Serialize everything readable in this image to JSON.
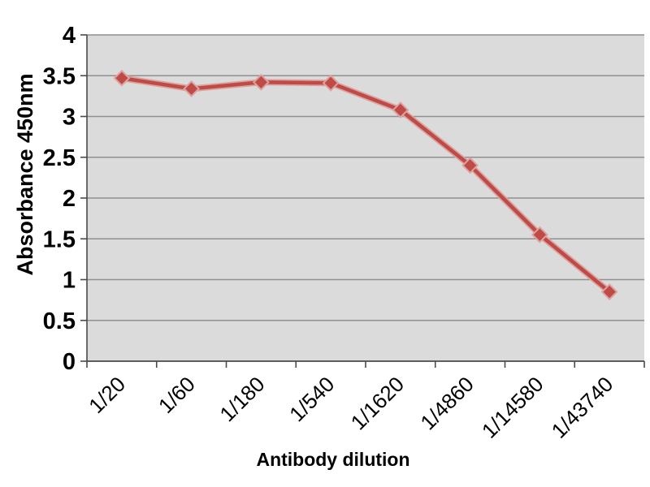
{
  "chart_data": {
    "type": "line",
    "title": "",
    "xlabel": "Antibody dilution",
    "ylabel": "Absorbance 450nm",
    "categories": [
      "1/20",
      "1/60",
      "1/180",
      "1/540",
      "1/1620",
      "1/4860",
      "1/14580",
      "1/43740"
    ],
    "values": [
      3.47,
      3.34,
      3.42,
      3.41,
      3.08,
      2.4,
      1.55,
      0.85
    ],
    "ylim": [
      0,
      4
    ],
    "ytick_step": 0.5,
    "yticks": [
      "0",
      "0.5",
      "1",
      "1.5",
      "2",
      "2.5",
      "3",
      "3.5",
      "4"
    ],
    "grid": true,
    "legend": "none",
    "x_tick_rotation": -45,
    "marker": "diamond"
  },
  "style": {
    "line_color": "#BE4B48",
    "line_halo_color": "#DDA29E",
    "plot_bg": "#DBDBDB",
    "gridline_color": "#909090",
    "axis_color": "#4A4A4A",
    "text_color": "#000000",
    "page_bg": "#FFFFFF"
  }
}
